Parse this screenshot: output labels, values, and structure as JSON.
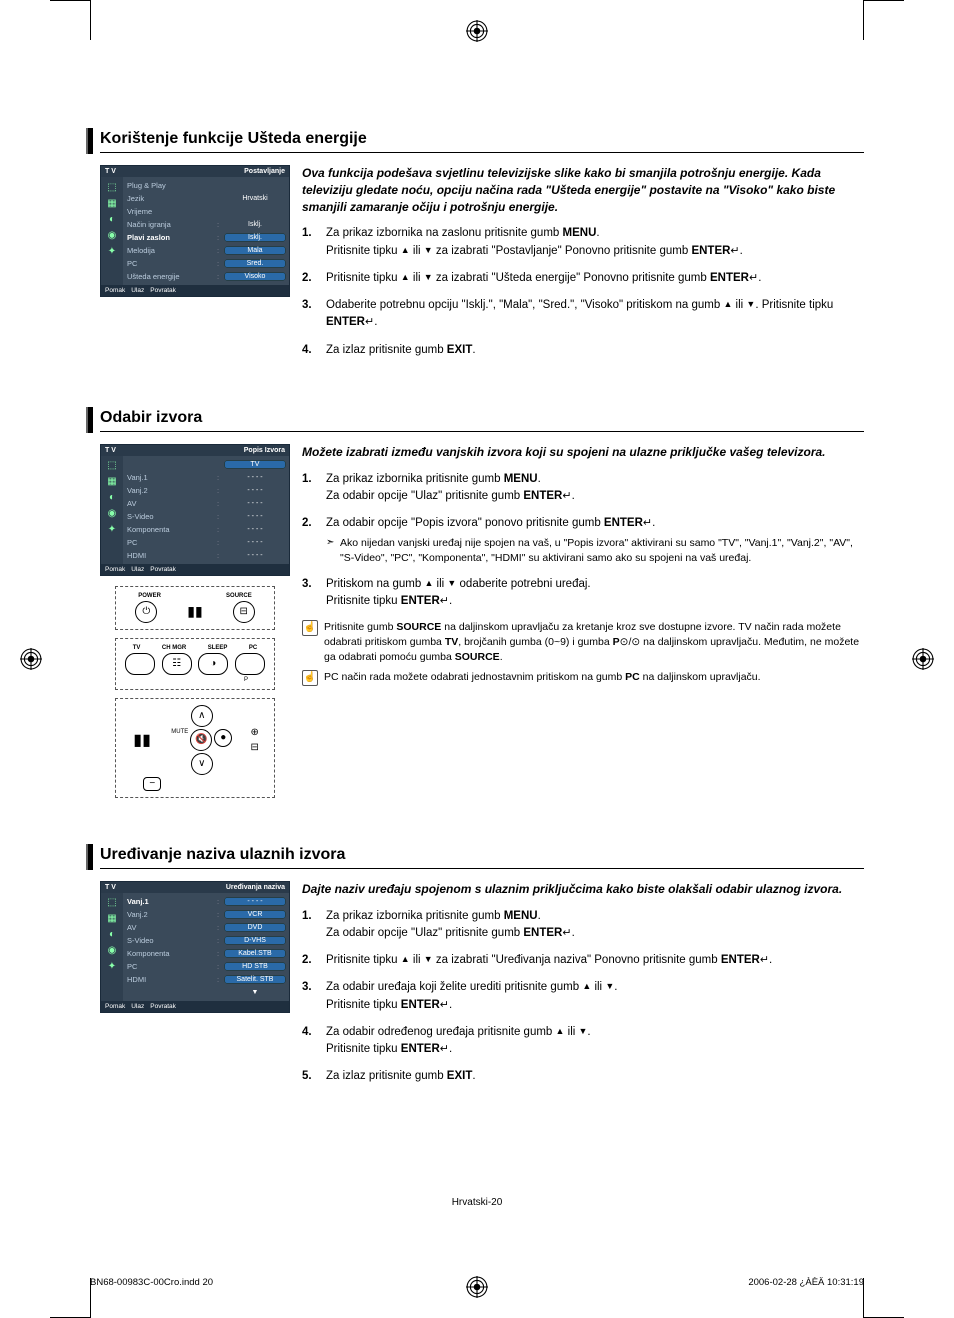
{
  "page": {
    "footer_center": "Hrvatski-20",
    "footer_left": "BN68-00983C-00Cro.indd   20",
    "footer_right": "2006-02-28   ¿ÀÈÄ 10:31:19"
  },
  "osd_common": {
    "title_left": "T V",
    "footer_move": "Pomak",
    "footer_enter": "Ulaz",
    "footer_return": "Povratak"
  },
  "section1": {
    "title": "Korištenje funkcije Ušteda energije",
    "intro": "Ova funkcija podešava svjetlinu televizijske slike kako bi smanjila potrošnju energije. Kada televiziju gledate noću, opciju načina rada \"Ušteda energije\" postavite na \"Visoko\" kako biste smanjili zamaranje očiju i potrošnju energije.",
    "osd": {
      "title_right": "Postavljanje",
      "rows": [
        {
          "label": "Plug & Play",
          "val": "",
          "pill": false
        },
        {
          "label": "Jezik",
          "val": "Hrvatski",
          "pill": false
        },
        {
          "label": "Vrijeme",
          "val": "",
          "pill": false
        },
        {
          "label": "Način igranja",
          "val": "Isklj.",
          "pill": false,
          "colon": true
        },
        {
          "label": "Plavi zaslon",
          "val": "Isklj.",
          "pill": true,
          "colon": true,
          "sel": true
        },
        {
          "label": "Melodija",
          "val": "Mala",
          "pill": true,
          "colon": true
        },
        {
          "label": "PC",
          "val": "Sred.",
          "pill": true,
          "colon": true
        },
        {
          "label": "Ušteda energije",
          "val": "Visoko",
          "pill": true,
          "colon": true
        }
      ]
    },
    "steps": {
      "s1a": "Za prikaz izbornika na zaslonu pritisnite gumb ",
      "s1b": "MENU",
      "s1c": ".",
      "s1d": "Pritisnite tipku ",
      "s1e": " ili ",
      "s1f": " za izabrati \"Postavljanje\" Ponovno pritisnite gumb ",
      "s1g": "ENTER",
      "s1h": ".",
      "s2a": "Pritisnite tipku ",
      "s2b": " ili ",
      "s2c": " za izabrati \"Ušteda energije\" Ponovno pritisnite gumb ",
      "s2d": "ENTER",
      "s2e": ".",
      "s3a": "Odaberite potrebnu opciju \"Isklj.\", \"Mala\", \"Sred.\", \"Visoko\" pritiskom na gumb ",
      "s3b": " ili ",
      "s3c": ". Pritisnite tipku ",
      "s3d": "ENTER",
      "s3e": ".",
      "s4a": "Za izlaz pritisnite gumb ",
      "s4b": "EXIT",
      "s4c": "."
    }
  },
  "section2": {
    "title": "Odabir izvora",
    "intro": "Možete izabrati između vanjskih izvora koji su spojeni na ulazne priključke vašeg televizora.",
    "osd": {
      "title_right": "Popis Izvora",
      "rows": [
        {
          "label": "TV",
          "val": "",
          "pill": true,
          "sel": true
        },
        {
          "label": "Vanj.1",
          "val": "- - - -",
          "colon": true
        },
        {
          "label": "Vanj.2",
          "val": "- - - -",
          "colon": true
        },
        {
          "label": "AV",
          "val": "- - - -",
          "colon": true
        },
        {
          "label": "S-Video",
          "val": "- - - -",
          "colon": true
        },
        {
          "label": "Komponenta",
          "val": "- - - -",
          "colon": true
        },
        {
          "label": "PC",
          "val": "- - - -",
          "colon": true
        },
        {
          "label": "HDMI",
          "val": "- - - -",
          "colon": true
        }
      ]
    },
    "steps": {
      "s1a": "Za prikaz izbornika pritisnite gumb ",
      "s1b": "MENU",
      "s1c": ".",
      "s1d": "Za odabir opcije \"Ulaz\" pritisnite gumb ",
      "s1e": "ENTER",
      "s1f": ".",
      "s2a": "Za odabir opcije \"Popis izvora\" ponovo pritisnite gumb ",
      "s2b": "ENTER",
      "s2c": ".",
      "s2note": "Ako nijedan vanjski uređaj nije spojen na vaš, u \"Popis izvora\" aktivirani su samo \"TV\", \"Vanj.1\", \"Vanj.2\", \"AV\", \"S-Video\", \"PC\", \"Komponenta\", \"HDMI\" su aktivirani samo ako su spojeni na vaš uređaj.",
      "s3a": "Pritiskom na gumb ",
      "s3b": " ili ",
      "s3c": " odaberite potrebni uređaj.",
      "s3d": "Pritisnite tipku ",
      "s3e": "ENTER",
      "s3f": "."
    },
    "notes": {
      "n1a": "Pritisnite gumb ",
      "n1b": "SOURCE",
      "n1c": " na daljinskom upravljaču za kretanje kroz sve dostupne izvore. TV način rada možete odabrati pritiskom gumba ",
      "n1d": "TV",
      "n1e": ", brojčanih gumba (0~9) i gumba ",
      "n1f": "P",
      "n1g": " na daljinskom upravljaču. Međutim, ne možete ga odabrati pomoću gumba ",
      "n1h": "SOURCE",
      "n1i": ".",
      "n2a": "PC način rada možete odabrati jednostavnim pritiskom na gumb ",
      "n2b": "PC",
      "n2c": " na daljinskom upravljaču."
    },
    "remote_labels": {
      "power": "POWER",
      "source": "SOURCE",
      "tv": "TV",
      "chmgr": "CH MGR",
      "sleep": "SLEEP",
      "pc": "PC",
      "mute": "MUTE",
      "p": "P"
    }
  },
  "section3": {
    "title": "Uređivanje naziva ulaznih izvora",
    "intro": "Dajte naziv uređaju spojenom s ulaznim priključcima kako biste olakšali odabir ulaznog izvora.",
    "osd": {
      "title_right": "Uređivanja naziva",
      "rows": [
        {
          "label": "Vanj.1",
          "val": "- - - -",
          "pill": true,
          "colon": true,
          "sel": true
        },
        {
          "label": "Vanj.2",
          "val": "VCR",
          "pill": true,
          "colon": true
        },
        {
          "label": "AV",
          "val": "DVD",
          "pill": true,
          "colon": true
        },
        {
          "label": "S-Video",
          "val": "D-VHS",
          "pill": true,
          "colon": true
        },
        {
          "label": "Komponenta",
          "val": "Kabel.STB",
          "pill": true,
          "colon": true
        },
        {
          "label": "PC",
          "val": "HD STB",
          "pill": true,
          "colon": true
        },
        {
          "label": "HDMI",
          "val": "Satelit. STB",
          "pill": true,
          "colon": true
        },
        {
          "label": "",
          "val": "▼",
          "pill": false
        }
      ]
    },
    "steps": {
      "s1a": "Za prikaz izbornika pritisnite gumb ",
      "s1b": "MENU",
      "s1c": ".",
      "s1d": "Za odabir opcije \"Ulaz\" pritisnite gumb ",
      "s1e": "ENTER",
      "s1f": ".",
      "s2a": "Pritisnite tipku ",
      "s2b": " ili ",
      "s2c": " za izabrati \"Uređivanja naziva\" Ponovno pritisnite gumb ",
      "s2d": "ENTER",
      "s2e": ".",
      "s3a": "Za odabir uređaja koji želite urediti pritisnite gumb ",
      "s3b": " ili ",
      "s3c": ".",
      "s3d": "Pritisnite tipku ",
      "s3e": "ENTER",
      "s3f": ".",
      "s4a": "Za odabir određenog uređaja pritisnite gumb ",
      "s4b": " ili ",
      "s4c": ".",
      "s4d": "Pritisnite tipku ",
      "s4e": "ENTER",
      "s4f": ".",
      "s5a": "Za izlaz pritisnite gumb ",
      "s5b": "EXIT",
      "s5c": "."
    }
  }
}
